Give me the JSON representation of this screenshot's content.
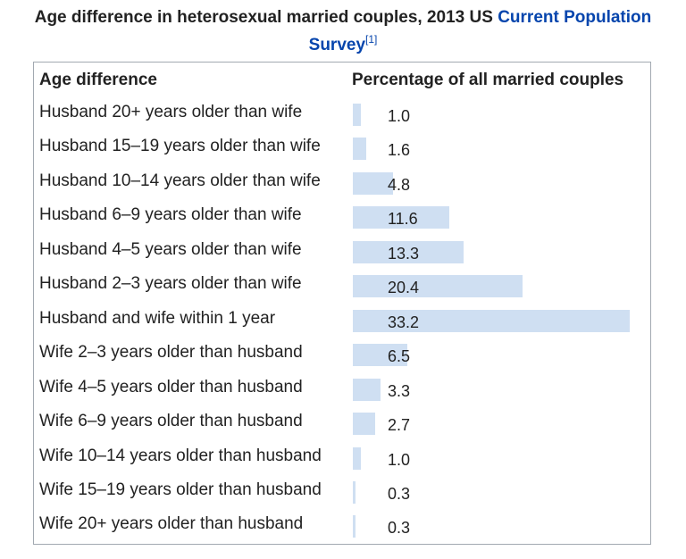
{
  "caption": {
    "text": "Age difference in heterosexual married couples, 2013 US ",
    "link_text": "Current Population Survey",
    "ref": "[1]"
  },
  "colors": {
    "bar": "#cfdff2",
    "link": "#0645ad",
    "border": "#a2a9b1"
  },
  "chart_data": {
    "type": "table",
    "columns": [
      "Age difference",
      "Percentage of all married couples"
    ],
    "rows": [
      {
        "label": "Husband 20+ years older than wife",
        "value": 1.0,
        "display": "1.0"
      },
      {
        "label": "Husband 15–19 years older than wife",
        "value": 1.6,
        "display": "1.6"
      },
      {
        "label": "Husband 10–14 years older than wife",
        "value": 4.8,
        "display": "4.8"
      },
      {
        "label": "Husband 6–9 years older than wife",
        "value": 11.6,
        "display": "11.6"
      },
      {
        "label": "Husband 4–5 years older than wife",
        "value": 13.3,
        "display": "13.3"
      },
      {
        "label": "Husband 2–3 years older than wife",
        "value": 20.4,
        "display": "20.4"
      },
      {
        "label": "Husband and wife within 1 year",
        "value": 33.2,
        "display": "33.2"
      },
      {
        "label": "Wife 2–3 years older than husband",
        "value": 6.5,
        "display": "6.5"
      },
      {
        "label": "Wife 4–5 years older than husband",
        "value": 3.3,
        "display": "3.3"
      },
      {
        "label": "Wife 6–9 years older than husband",
        "value": 2.7,
        "display": "2.7"
      },
      {
        "label": "Wife 10–14 years older than husband",
        "value": 1.0,
        "display": "1.0"
      },
      {
        "label": "Wife 15–19 years older than husband",
        "value": 0.3,
        "display": "0.3"
      },
      {
        "label": "Wife 20+ years older than husband",
        "value": 0.3,
        "display": "0.3"
      }
    ]
  }
}
